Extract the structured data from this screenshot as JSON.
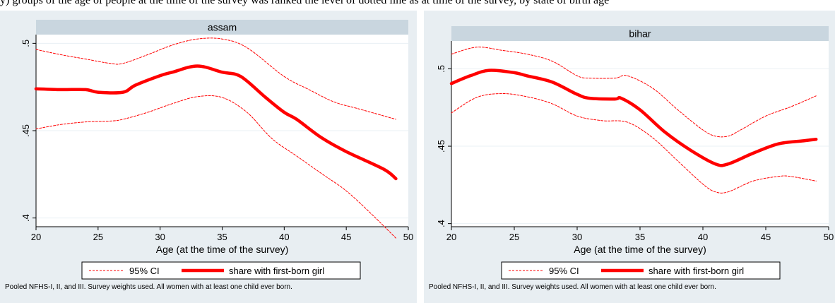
{
  "header_text": "y) groups of the age of people at the time of the survey was ranked the level of dotted line as at time of the survey, by state of birth age",
  "chart_data": [
    {
      "type": "line",
      "title": "assam",
      "xlabel": "Age (at the time of the survey)",
      "ylabel": "",
      "xlim": [
        20,
        50
      ],
      "ylim": [
        0.395,
        0.505
      ],
      "xticks": [
        20,
        25,
        30,
        35,
        40,
        45,
        50
      ],
      "xtick_labels": [
        "20",
        "25",
        "30",
        "35",
        "40",
        "45",
        "50"
      ],
      "yticks": [
        0.4,
        0.45,
        0.5
      ],
      "ytick_labels": [
        ".4",
        ".45",
        ".5"
      ],
      "grid": true,
      "legend_position": "bottom",
      "note": "Pooled NFHS-I, II, and III. Survey weights used. All women with at least one child ever born.",
      "series": [
        {
          "name": "95% CI",
          "role": "upper",
          "color": "#ff0000",
          "style": "dashed",
          "x": [
            20,
            22,
            24,
            26,
            27,
            29,
            31,
            33,
            35,
            37,
            40,
            42,
            44,
            46,
            49
          ],
          "y": [
            0.4965,
            0.4935,
            0.491,
            0.4885,
            0.4885,
            0.4935,
            0.499,
            0.5025,
            0.5025,
            0.4975,
            0.481,
            0.4735,
            0.4665,
            0.4625,
            0.4565
          ]
        },
        {
          "name": "share with first-born girl",
          "role": "main",
          "color": "#ff0000",
          "style": "solid",
          "x": [
            20,
            22,
            24,
            25,
            27,
            28,
            30,
            31,
            33,
            35,
            36.5,
            38.5,
            40,
            41,
            43,
            45,
            48,
            49
          ],
          "y": [
            0.474,
            0.4735,
            0.4735,
            0.472,
            0.472,
            0.476,
            0.4815,
            0.4835,
            0.487,
            0.4835,
            0.481,
            0.469,
            0.4605,
            0.4565,
            0.446,
            0.438,
            0.428,
            0.4225
          ]
        },
        {
          "name": "95% CI",
          "role": "lower",
          "color": "#ff0000",
          "style": "dashed",
          "x": [
            20,
            22,
            24,
            26,
            27,
            29,
            31,
            33,
            35,
            37,
            39,
            41,
            43,
            45,
            47,
            49
          ],
          "y": [
            0.451,
            0.4535,
            0.455,
            0.4555,
            0.4565,
            0.4605,
            0.4655,
            0.4695,
            0.469,
            0.4605,
            0.4455,
            0.4355,
            0.4255,
            0.4155,
            0.4025,
            0.3885
          ]
        }
      ]
    },
    {
      "type": "line",
      "title": "bihar",
      "xlabel": "Age (at the time of the survey)",
      "ylabel": "",
      "xlim": [
        20,
        50
      ],
      "ylim": [
        0.398,
        0.518
      ],
      "xticks": [
        20,
        25,
        30,
        35,
        40,
        45,
        50
      ],
      "xtick_labels": [
        "20",
        "25",
        "30",
        "35",
        "40",
        "45",
        "50"
      ],
      "yticks": [
        0.4,
        0.45,
        0.5
      ],
      "ytick_labels": [
        ".4",
        ".45",
        ".5"
      ],
      "grid": true,
      "legend_position": "bottom",
      "note": "Pooled NFHS-I, II, and III. Survey weights used. All women with at least one child ever born.",
      "series": [
        {
          "name": "95% CI",
          "role": "upper",
          "color": "#ff0000",
          "style": "dashed",
          "x": [
            20,
            22,
            24,
            26,
            28,
            30,
            31,
            33,
            34,
            36,
            38,
            40,
            41,
            42,
            43,
            45,
            47,
            49
          ],
          "y": [
            0.5095,
            0.514,
            0.512,
            0.5095,
            0.505,
            0.4955,
            0.494,
            0.494,
            0.4955,
            0.4875,
            0.4735,
            0.4605,
            0.4565,
            0.4565,
            0.4605,
            0.4695,
            0.4755,
            0.4825
          ]
        },
        {
          "name": "share with first-born girl",
          "role": "main",
          "color": "#ff0000",
          "style": "solid",
          "x": [
            20,
            21.5,
            23,
            25,
            26,
            28,
            30,
            31,
            33,
            33.5,
            35,
            37,
            39,
            41,
            42,
            44,
            46,
            48,
            49
          ],
          "y": [
            0.4905,
            0.4955,
            0.499,
            0.4975,
            0.4955,
            0.4915,
            0.4835,
            0.481,
            0.4805,
            0.481,
            0.4735,
            0.459,
            0.4475,
            0.4385,
            0.4385,
            0.4455,
            0.4515,
            0.4535,
            0.4545
          ]
        },
        {
          "name": "95% CI",
          "role": "lower",
          "color": "#ff0000",
          "style": "dashed",
          "x": [
            20,
            22,
            24,
            26,
            28,
            30,
            32,
            34,
            36,
            38,
            40,
            41,
            42,
            44,
            46,
            47,
            49
          ],
          "y": [
            0.4715,
            0.4815,
            0.484,
            0.482,
            0.4775,
            0.4695,
            0.4665,
            0.4655,
            0.4555,
            0.4405,
            0.4255,
            0.4205,
            0.4205,
            0.4275,
            0.4305,
            0.4305,
            0.4275
          ]
        }
      ]
    }
  ]
}
